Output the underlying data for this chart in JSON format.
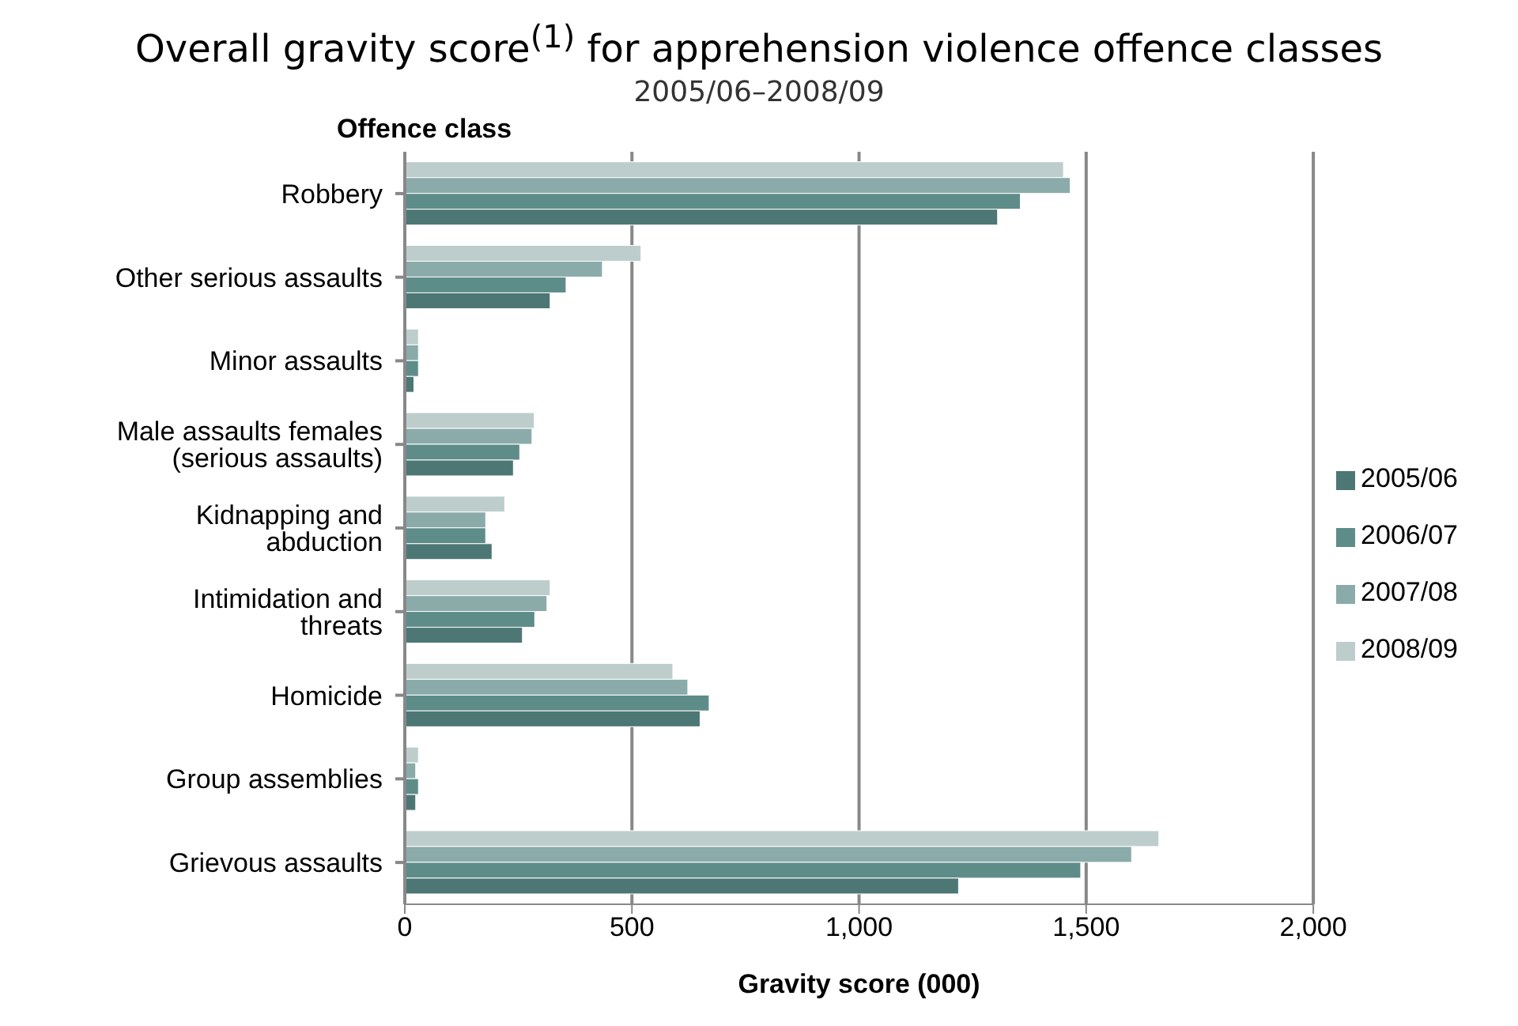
{
  "chart_data": {
    "type": "bar",
    "orientation": "horizontal",
    "title": "Overall gravity score$^{(1)}$ for apprehension violence offence classes",
    "subtitle": "2005/06–2008/09",
    "ylabel": "Offence class",
    "xlabel": "Gravity score (000)",
    "categories": [
      "Robbery",
      "Other serious assaults",
      "Minor assaults",
      "Male assaults females (serious assaults)",
      "Kidnapping and abduction",
      "Intimidation and threats",
      "Homicide",
      "Group assemblies",
      "Grievous assaults"
    ],
    "series": [
      {
        "name": "2008/09",
        "color": "#bccdcc",
        "values": [
          1450,
          520,
          30,
          285,
          220,
          320,
          590,
          30,
          1660
        ]
      },
      {
        "name": "2007/08",
        "color": "#8aabaa",
        "values": [
          1465,
          435,
          30,
          280,
          178,
          313,
          623,
          24,
          1600
        ]
      },
      {
        "name": "2006/07",
        "color": "#5e8c89",
        "values": [
          1355,
          355,
          30,
          253,
          178,
          286,
          670,
          30,
          1488
        ]
      },
      {
        "name": "2005/06",
        "color": "#4d7774",
        "values": [
          1305,
          320,
          20,
          239,
          192,
          259,
          650,
          24,
          1219
        ]
      }
    ],
    "xlim": [
      0,
      2000
    ],
    "xticks": [
      0,
      {
        "value": 500,
        "label": "500"
      },
      {
        "value": 1000,
        "label": "1,000"
      },
      {
        "value": 1500,
        "label": "1,500"
      },
      {
        "value": 2000,
        "label": "2,000"
      }
    ],
    "grid": "x",
    "legend": "right"
  }
}
